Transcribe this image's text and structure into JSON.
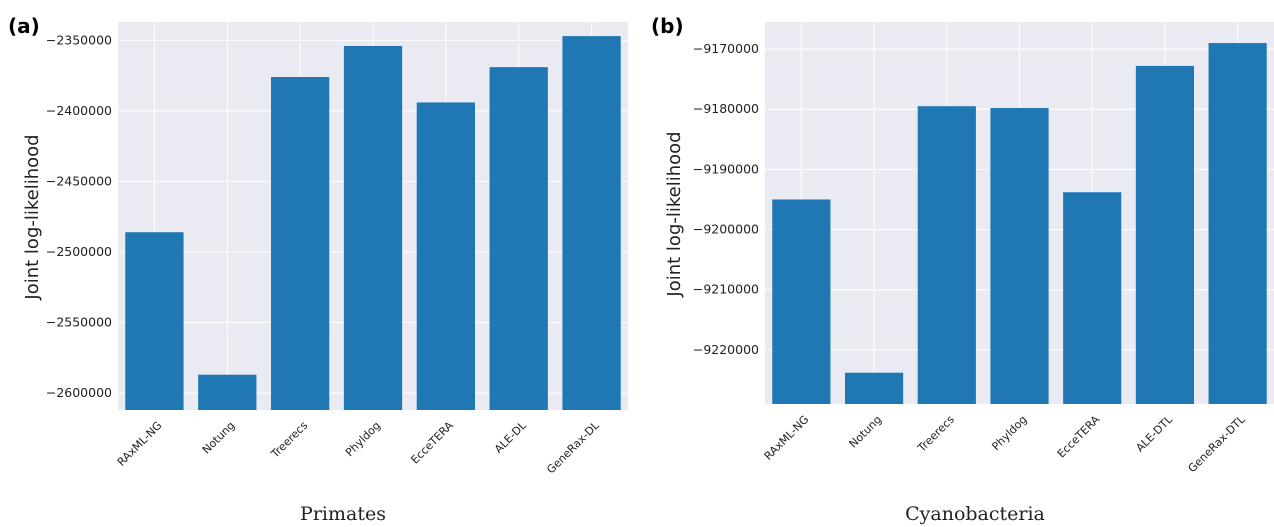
{
  "panels": [
    {
      "letter": "(a)",
      "caption": "Primates",
      "ylabel": "Joint log-likelihood",
      "yticks": [
        "−2350000",
        "−2400000",
        "−2450000",
        "−2500000",
        "−2550000",
        "−2600000"
      ]
    },
    {
      "letter": "(b)",
      "caption": "Cyanobacteria",
      "ylabel": "Joint log-likelihood",
      "yticks": [
        "−9170000",
        "−9180000",
        "−9190000",
        "−9200000",
        "−9210000",
        "−9220000"
      ]
    }
  ],
  "colors": {
    "bar": "#1f77b4",
    "plot_background": "#eaeaf2",
    "grid": "#ffffff"
  },
  "chart_data": [
    {
      "type": "bar",
      "title": "",
      "xlabel": "Primates",
      "ylabel": "Joint log-likelihood",
      "categories": [
        "RAxML-NG",
        "Notung",
        "Treerecs",
        "Phyldog",
        "EcceTERA",
        "ALE-DL",
        "GeneRax-DL"
      ],
      "values": [
        -2486000,
        -2587000,
        -2376000,
        -2354000,
        -2394000,
        -2369000,
        -2347000
      ],
      "ylim": [
        -2612000,
        -2337000
      ],
      "yticks": [
        -2350000,
        -2400000,
        -2450000,
        -2500000,
        -2550000,
        -2600000
      ],
      "grid": true
    },
    {
      "type": "bar",
      "title": "",
      "xlabel": "Cyanobacteria",
      "ylabel": "Joint log-likelihood",
      "categories": [
        "RAxML-NG",
        "Notung",
        "Treerecs",
        "Phyldog",
        "EcceTERA",
        "ALE-DTL",
        "GeneRax-DTL"
      ],
      "values": [
        -9195000,
        -9223800,
        -9179500,
        -9179800,
        -9193800,
        -9172800,
        -9169000
      ],
      "ylim": [
        -9229000,
        -9165500
      ],
      "yticks": [
        -9170000,
        -9180000,
        -9190000,
        -9200000,
        -9210000,
        -9220000
      ],
      "grid": true
    }
  ]
}
